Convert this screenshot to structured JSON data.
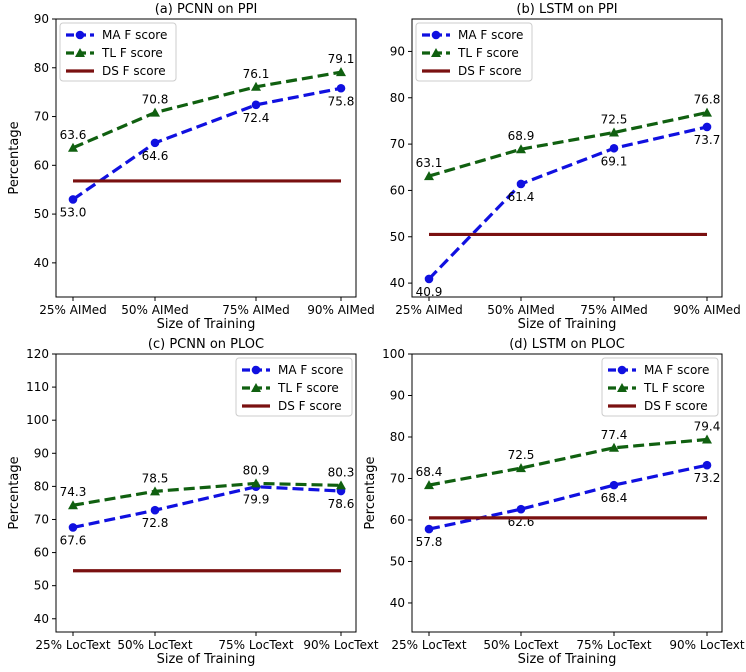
{
  "chart_data": [
    {
      "type": "line",
      "title": "(a) PCNN on PPI",
      "xlabel": "Size of Training",
      "ylabel": "Percentage",
      "categories": [
        "25% AIMed",
        "50% AIMed",
        "75% AIMed",
        "90% AIMed"
      ],
      "ylim": [
        33,
        90
      ],
      "yticks": [
        40,
        50,
        60,
        70,
        80,
        90
      ],
      "legend_position": "top-left",
      "series": [
        {
          "name": "MA F score",
          "values": [
            53.0,
            64.6,
            72.4,
            75.8
          ],
          "labels": [
            "53.0",
            "64.6",
            "72.4",
            "75.8"
          ],
          "color": "#1010e0"
        },
        {
          "name": "TL F score",
          "values": [
            63.6,
            70.8,
            76.1,
            79.1
          ],
          "labels": [
            "63.6",
            "70.8",
            "76.1",
            "79.1"
          ],
          "color": "#106010"
        },
        {
          "name": "DS F score",
          "values": [
            56.8,
            56.8,
            56.8,
            56.8
          ],
          "color": "#7a1010"
        }
      ]
    },
    {
      "type": "line",
      "title": "(b) LSTM on PPI",
      "xlabel": "Size of Training",
      "ylabel": "",
      "categories": [
        "25% AIMed",
        "50% AIMed",
        "75% AIMed",
        "90% AIMed"
      ],
      "ylim": [
        37,
        97
      ],
      "yticks": [
        40,
        50,
        60,
        70,
        80,
        90
      ],
      "legend_position": "top-left",
      "series": [
        {
          "name": "MA F score",
          "values": [
            40.9,
            61.4,
            69.1,
            73.7
          ],
          "labels": [
            "40.9",
            "61.4",
            "69.1",
            "73.7"
          ],
          "color": "#1010e0"
        },
        {
          "name": "TL F score",
          "values": [
            63.1,
            68.9,
            72.5,
            76.8
          ],
          "labels": [
            "63.1",
            "68.9",
            "72.5",
            "76.8"
          ],
          "color": "#106010"
        },
        {
          "name": "DS F score",
          "values": [
            50.5,
            50.5,
            50.5,
            50.5
          ],
          "color": "#7a1010"
        }
      ]
    },
    {
      "type": "line",
      "title": "(c) PCNN on PLOC",
      "xlabel": "Size of Training",
      "ylabel": "Percentage",
      "categories": [
        "25% LocText",
        "50% LocText",
        "75% LocText",
        "90% LocText"
      ],
      "ylim": [
        36,
        120
      ],
      "yticks": [
        40,
        50,
        60,
        70,
        80,
        90,
        100,
        110,
        120
      ],
      "legend_position": "top-right",
      "series": [
        {
          "name": "MA F score",
          "values": [
            67.6,
            72.8,
            79.9,
            78.6
          ],
          "labels": [
            "67.6",
            "72.8",
            "79.9",
            "78.6"
          ],
          "color": "#1010e0"
        },
        {
          "name": "TL F score",
          "values": [
            74.3,
            78.5,
            80.9,
            80.3
          ],
          "labels": [
            "74.3",
            "78.5",
            "80.9",
            "80.3"
          ],
          "color": "#106010"
        },
        {
          "name": "DS F score",
          "values": [
            54.5,
            54.5,
            54.5,
            54.5
          ],
          "color": "#7a1010"
        }
      ]
    },
    {
      "type": "line",
      "title": "(d) LSTM on PLOC",
      "xlabel": "Size of Training",
      "ylabel": "Percentage",
      "categories": [
        "25% LocText",
        "50% LocText",
        "75% LocText",
        "90% LocText"
      ],
      "ylim": [
        33,
        100
      ],
      "yticks": [
        40,
        50,
        60,
        70,
        80,
        90,
        100
      ],
      "legend_position": "top-right",
      "series": [
        {
          "name": "MA F score",
          "values": [
            57.8,
            62.6,
            68.4,
            73.2
          ],
          "labels": [
            "57.8",
            "62.6",
            "68.4",
            "73.2"
          ],
          "color": "#1010e0"
        },
        {
          "name": "TL F score",
          "values": [
            68.4,
            72.5,
            77.4,
            79.4
          ],
          "labels": [
            "68.4",
            "72.5",
            "77.4",
            "79.4"
          ],
          "color": "#106010"
        },
        {
          "name": "DS F score",
          "values": [
            60.5,
            60.5,
            60.5,
            60.5
          ],
          "color": "#7a1010"
        }
      ]
    }
  ]
}
